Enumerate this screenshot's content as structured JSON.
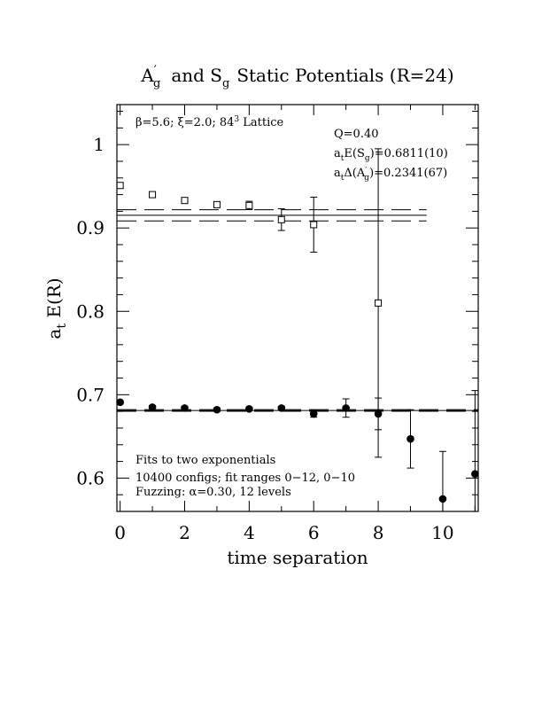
{
  "chart_data": {
    "type": "scatter",
    "title": "A′g  and Sg Static Potentials (R=24)",
    "title_parts": {
      "a": "A",
      "prime": "′",
      "a_sub": "g",
      "mid": "and S",
      "s_sub": "g",
      "rest": "Static Potentials (R=24)"
    },
    "xlabel": "time separation",
    "ylabel": {
      "main": "a",
      "sub": "t",
      "rest": " E(R)"
    },
    "xlim": [
      -0.1,
      11.1
    ],
    "ylim": [
      0.56,
      1.048
    ],
    "x_ticks": [
      0,
      2,
      4,
      6,
      8,
      10
    ],
    "y_ticks": [
      0.6,
      0.7,
      0.8,
      0.9,
      1.0
    ],
    "y_tick_labels": [
      "0.6",
      "0.7",
      "0.8",
      "0.9",
      "1"
    ],
    "grid": false,
    "annotations": {
      "lattice": {
        "beta": "β=5.6; ",
        "xi": "ξ=2.0; ",
        "lat": "84",
        "sup": "3",
        "tail": " Lattice"
      },
      "q": "Q=0.40",
      "energy_s": {
        "a": "a",
        "t": "t",
        "mid": "E(S",
        "g": "g",
        "end": ")=0.6811(10)"
      },
      "energy_a": {
        "a": "a",
        "t": "t",
        "mid": "Δ(A",
        "p": "′",
        "g": "g",
        "end": ")=0.2341(67)"
      },
      "fit_line_1": "Fits to two exponentials",
      "fit_line_2": "10400 configs; fit ranges 0−12, 0−10",
      "fit_line_3": {
        "pre": "Fuzzing: ",
        "alpha": "α",
        "post": "=0.30, 12 levels"
      }
    },
    "series": [
      {
        "marker": "open-square",
        "points": [
          {
            "x": 0,
            "y": 0.951,
            "err": 0.003
          },
          {
            "x": 1,
            "y": 0.94,
            "err": 0.003
          },
          {
            "x": 2,
            "y": 0.933,
            "err": 0.003
          },
          {
            "x": 3,
            "y": 0.928,
            "err": 0.003
          },
          {
            "x": 4,
            "y": 0.927,
            "err": 0.005
          },
          {
            "x": 5,
            "y": 0.91,
            "err": 0.013
          },
          {
            "x": 6,
            "y": 0.904,
            "err": 0.033
          },
          {
            "x": 8,
            "y": 0.81,
            "err": 0.185
          }
        ]
      },
      {
        "marker": "filled-circle",
        "points": [
          {
            "x": 0,
            "y": 0.691,
            "err": 0.002
          },
          {
            "x": 1,
            "y": 0.685,
            "err": 0.002
          },
          {
            "x": 2,
            "y": 0.684,
            "err": 0.002
          },
          {
            "x": 3,
            "y": 0.682,
            "err": 0.002
          },
          {
            "x": 4,
            "y": 0.683,
            "err": 0.002
          },
          {
            "x": 5,
            "y": 0.684,
            "err": 0.002
          },
          {
            "x": 6,
            "y": 0.677,
            "err": 0.004
          },
          {
            "x": 7,
            "y": 0.684,
            "err": 0.011
          },
          {
            "x": 8,
            "y": 0.677,
            "err": 0.019
          },
          {
            "x": 9,
            "y": 0.647,
            "err": 0.035
          },
          {
            "x": 10,
            "y": 0.575,
            "err": 0.057
          },
          {
            "x": 11,
            "y": 0.605,
            "err": 0.1
          }
        ]
      }
    ],
    "fit_lines": [
      {
        "y": 0.9152,
        "band": 0.0067,
        "x_range": [
          -0.1,
          9.5
        ]
      },
      {
        "y": 0.6811,
        "band": 0.001,
        "x_range": [
          -0.1,
          11.1
        ]
      }
    ]
  }
}
